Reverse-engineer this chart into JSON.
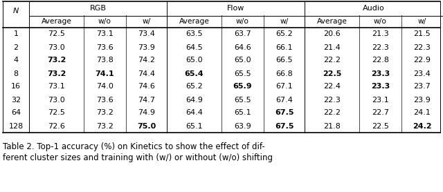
{
  "N_values": [
    "1",
    "2",
    "4",
    "8",
    "16",
    "32",
    "64",
    "128"
  ],
  "rgb_avg": [
    "72.5",
    "73.0",
    "73.2",
    "73.2",
    "73.1",
    "73.0",
    "72.5",
    "72.6"
  ],
  "rgb_wo": [
    "73.1",
    "73.6",
    "73.8",
    "74.1",
    "74.0",
    "73.6",
    "73.2",
    "73.2"
  ],
  "rgb_w": [
    "73.4",
    "73.9",
    "74.2",
    "74.4",
    "74.6",
    "74.7",
    "74.9",
    "75.0"
  ],
  "flow_avg": [
    "63.5",
    "64.5",
    "65.0",
    "65.4",
    "65.2",
    "64.9",
    "64.4",
    "65.1"
  ],
  "flow_wo": [
    "63.7",
    "64.6",
    "65.0",
    "65.5",
    "65.9",
    "65.5",
    "65.1",
    "63.9"
  ],
  "flow_w": [
    "65.2",
    "66.1",
    "66.5",
    "66.8",
    "67.1",
    "67.4",
    "67.5",
    "67.5"
  ],
  "audio_avg": [
    "20.6",
    "21.4",
    "22.2",
    "22.5",
    "22.4",
    "22.3",
    "22.2",
    "21.8"
  ],
  "audio_wo": [
    "21.3",
    "22.3",
    "22.8",
    "23.3",
    "23.3",
    "23.1",
    "22.7",
    "22.5"
  ],
  "audio_w": [
    "21.5",
    "22.3",
    "22.9",
    "23.4",
    "23.7",
    "23.9",
    "24.1",
    "24.2"
  ],
  "bold_cells": {
    "0,1": false,
    "0,2": false,
    "0,3": false,
    "1,1": false,
    "1,2": false,
    "1,3": false,
    "2,1": true,
    "2,2": false,
    "2,3": false,
    "3,1": true,
    "3,2": true,
    "3,3": false,
    "4,1": false,
    "4,2": false,
    "4,3": false,
    "5,1": false,
    "5,2": false,
    "5,3": false,
    "6,1": false,
    "6,2": false,
    "6,3": false,
    "7,1": false,
    "7,2": false,
    "7,3": true,
    "0,4": false,
    "0,5": false,
    "0,6": false,
    "1,4": false,
    "1,5": false,
    "1,6": false,
    "2,4": false,
    "2,5": false,
    "2,6": false,
    "3,4": true,
    "3,5": false,
    "3,6": false,
    "4,4": false,
    "4,5": true,
    "4,6": false,
    "5,4": false,
    "5,5": false,
    "5,6": false,
    "6,4": false,
    "6,5": false,
    "6,6": true,
    "7,4": false,
    "7,5": false,
    "7,6": true,
    "0,7": false,
    "0,8": false,
    "0,9": false,
    "1,7": false,
    "1,8": false,
    "1,9": false,
    "2,7": false,
    "2,8": false,
    "2,9": false,
    "3,7": true,
    "3,8": true,
    "3,9": false,
    "4,7": false,
    "4,8": true,
    "4,9": false,
    "5,7": false,
    "5,8": false,
    "5,9": false,
    "6,7": false,
    "6,8": false,
    "6,9": false,
    "7,7": false,
    "7,8": false,
    "7,9": true
  },
  "caption_line1": "Table 2. Top-1 accuracy (%) on Kinetics to show the effect of dif-",
  "caption_line2": "ferent cluster sizes and training with (w/) or without (w/o) shifting",
  "bg_color": "#ffffff",
  "text_color": "#000000",
  "line_color": "#000000",
  "fig_width": 6.4,
  "fig_height": 2.78,
  "dpi": 100
}
